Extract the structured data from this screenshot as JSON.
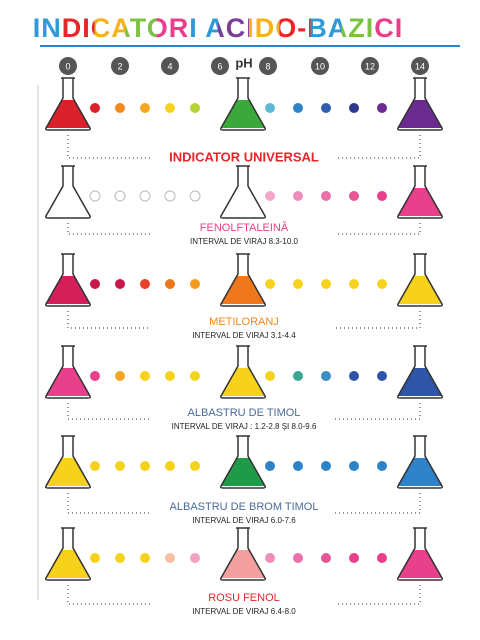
{
  "header": {
    "title": "INDICATORI ACIDO-BAZICI",
    "title_colors": [
      "#2e9bd6",
      "#e8262a",
      "#f7b21c",
      "#7cc242",
      "#e83e8c",
      "#2e9bd6",
      "#7b3f98",
      "#f7b21c",
      "#e8262a",
      "#2e9bd6",
      "#7cc242",
      "#e83e8c"
    ]
  },
  "ph_scale": {
    "unit": "pH",
    "ticks": [
      0,
      2,
      4,
      6,
      8,
      10,
      12,
      14
    ]
  },
  "indicators": [
    {
      "name": "INDICATOR UNIVERSAL",
      "label_color": "#e8262a",
      "flasks": [
        "#d9202b",
        "#3aa83a",
        "#6a2c91"
      ],
      "dots": [
        "#d9202b",
        "#f08a1c",
        "#f5a623",
        "#f7d21c",
        "#b5d334",
        "#5fb8d8",
        "#2e82c8",
        "#2f5fb0",
        "#2e3a8f",
        "#6a2c91"
      ]
    },
    {
      "name": "FENOLFTALEINĂ",
      "interval": "INTERVAL DE VIRAJ 8.3-10.0",
      "label_color": "#e8408a",
      "flasks": [
        "#ffffff",
        "#ffffff",
        "#e8408a"
      ],
      "dots": [
        "#ffffff",
        "#ffffff",
        "#ffffff",
        "#ffffff",
        "#ffffff",
        "#f4a6c8",
        "#f08cbb",
        "#ec6fa9",
        "#e85597",
        "#e8408a"
      ]
    },
    {
      "name": "METILORANJ",
      "interval": "INTERVAL DE VIRAJ 3.1-4.4",
      "label_color": "#f08a1c",
      "flasks": [
        "#d51f5a",
        "#f0781c",
        "#f7d21c"
      ],
      "dots": [
        "#c8174a",
        "#c8174a",
        "#e8402a",
        "#f0781c",
        "#f59a1c",
        "#f7d21c",
        "#f7d21c",
        "#f7d21c",
        "#f7d21c",
        "#f7d21c"
      ]
    },
    {
      "name": "ALBASTRU DE TIMOL",
      "interval": "INTERVAL DE VIRAJ : 1.2-2.8 ȘI 8.0-9.6",
      "label_color": "#4a6a9a",
      "flasks": [
        "#e8408a",
        "#f7d21c",
        "#2e55a8"
      ],
      "dots": [
        "#e8408a",
        "#f5a623",
        "#f7d21c",
        "#f7d21c",
        "#f7d21c",
        "#f7d21c",
        "#3aa890",
        "#3a8fc0",
        "#2e55a8",
        "#2e55a8"
      ]
    },
    {
      "name": "ALBASTRU DE BROM TIMOL",
      "interval": "INTERVAL DE VIRAJ 6.0-7.6",
      "label_color": "#4a6a9a",
      "flasks": [
        "#f7d21c",
        "#1f9a48",
        "#2e82c8"
      ],
      "dots": [
        "#f7d21c",
        "#f7d21c",
        "#f7d21c",
        "#f7d21c",
        "#f7d21c",
        "#2e82c8",
        "#2e82c8",
        "#2e82c8",
        "#2e82c8",
        "#2e82c8"
      ]
    },
    {
      "name": "ROSU FENOL",
      "interval": "INTERVAL DE VIRAJ 6.4-8.0",
      "label_color": "#e8262a",
      "flasks": [
        "#f7d21c",
        "#f4a0a0",
        "#e8408a"
      ],
      "dots": [
        "#f7d21c",
        "#f7d21c",
        "#f7d21c",
        "#f4c0a0",
        "#f4a0c0",
        "#f08cbb",
        "#ec6fa9",
        "#e85597",
        "#e8408a",
        "#e8408a"
      ]
    }
  ]
}
